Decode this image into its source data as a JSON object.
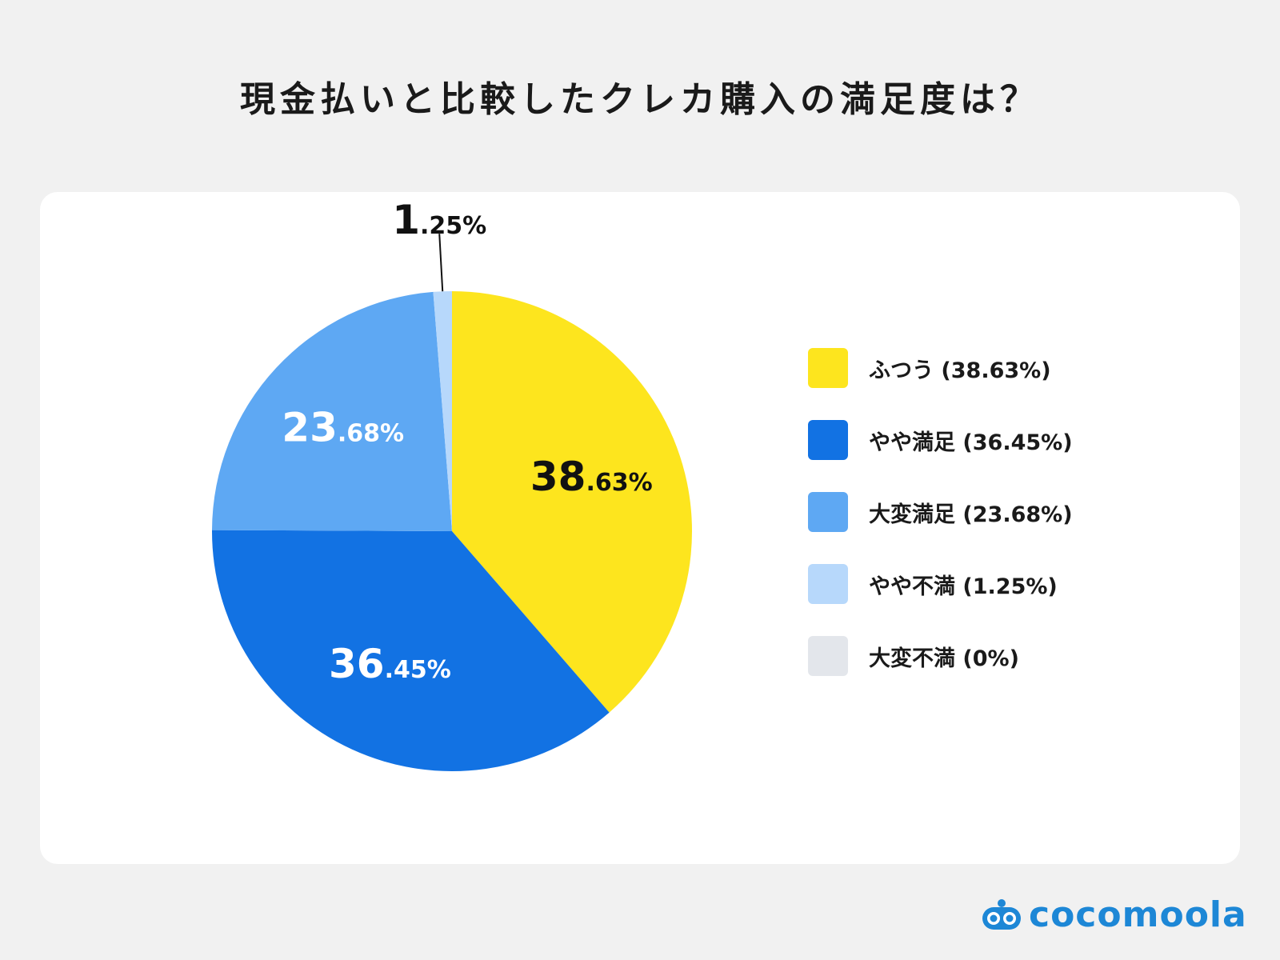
{
  "chart_data": {
    "type": "pie",
    "title": "現金払いと比較したクレカ購入の満足度は？",
    "slices": [
      {
        "label": "ふつう",
        "value": 38.63,
        "legend": "ふつう (38.63%)",
        "data_label_int": "38",
        "data_label_dec": ".63%",
        "color": "#fde51e",
        "label_color": "#111111"
      },
      {
        "label": "やや満足",
        "value": 36.45,
        "legend": "やや満足 (36.45%)",
        "data_label_int": "36",
        "data_label_dec": ".45%",
        "color": "#1272e3",
        "label_color": "#ffffff"
      },
      {
        "label": "大変満足",
        "value": 23.68,
        "legend": "大変満足 (23.68%)",
        "data_label_int": "23",
        "data_label_dec": ".68%",
        "color": "#5ea8f3",
        "label_color": "#ffffff"
      },
      {
        "label": "やや不満",
        "value": 1.25,
        "legend": "やや不満 (1.25%)",
        "data_label_int": "1",
        "data_label_dec": ".25%",
        "color": "#b7d8fb",
        "label_color": "#111111"
      },
      {
        "label": "大変不満",
        "value": 0,
        "legend": "大変不満 (0%)",
        "data_label_int": "",
        "data_label_dec": "",
        "color": "#e3e6eb",
        "label_color": "#111111"
      }
    ],
    "legend_position": "right"
  },
  "branding": {
    "logo_text": "cocomoola",
    "logo_color": "#1d87d6"
  }
}
